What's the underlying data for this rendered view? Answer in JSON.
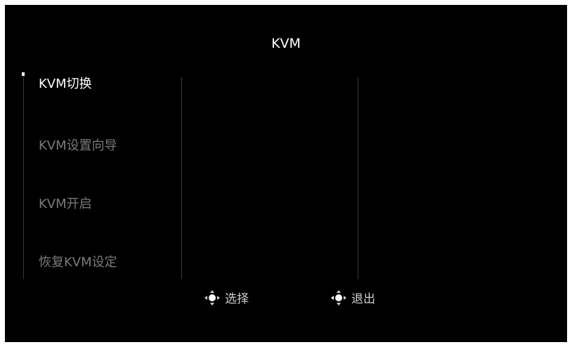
{
  "osd": {
    "title": "KVM",
    "menu": {
      "items": [
        {
          "label": "KVM切换",
          "selected": true
        },
        {
          "label": "KVM设置向导",
          "selected": false
        },
        {
          "label": "KVM开启",
          "selected": false
        },
        {
          "label": "恢复KVM设定",
          "selected": false
        }
      ]
    },
    "footer": {
      "select_label": "选择",
      "exit_label": "退出",
      "select_icon": "joystick-nav-icon",
      "exit_icon": "joystick-nav-icon"
    },
    "colors": {
      "background": "#000000",
      "text_active": "#ffffff",
      "text_inactive": "#7a7a7a",
      "divider": "#3a3a3a"
    }
  }
}
